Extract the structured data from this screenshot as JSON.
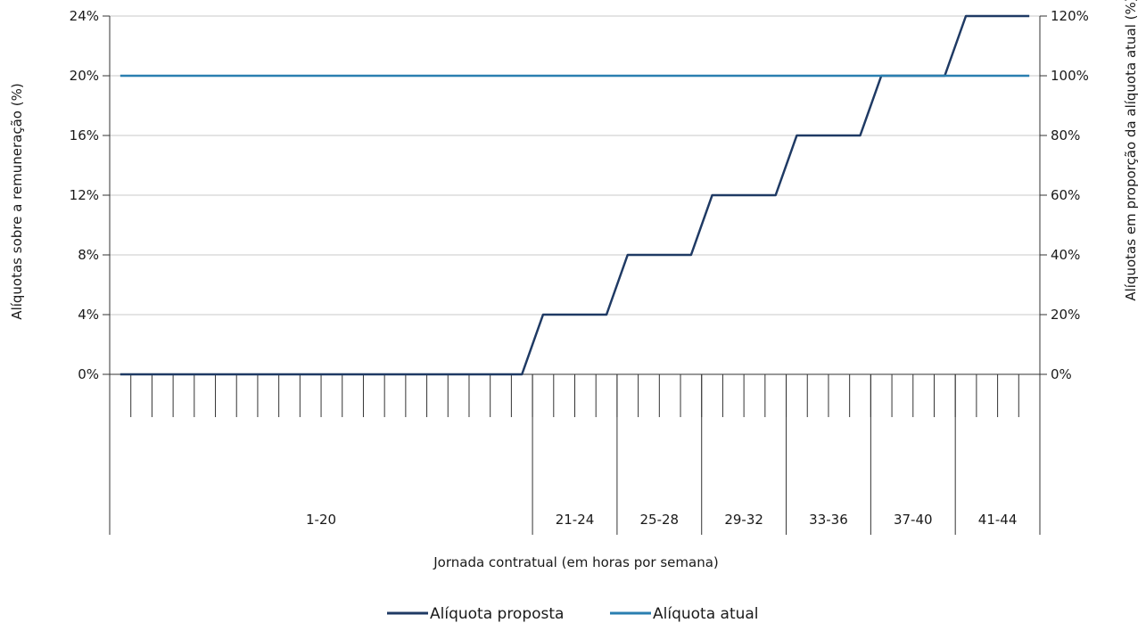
{
  "chart_data": {
    "type": "line",
    "xlabel": "Jornada contratual (em horas por semana)",
    "ylabel_left": "Alíquotas sobre a remuneração (%)",
    "ylabel_right": "Alíquotas em proporção da alíquota atual (%)",
    "ylim_left": [
      0,
      24
    ],
    "ylim_right": [
      0,
      120
    ],
    "yticks_left": [
      "0%",
      "4%",
      "8%",
      "12%",
      "16%",
      "20%",
      "24%"
    ],
    "yticks_right": [
      "0%",
      "20%",
      "40%",
      "60%",
      "80%",
      "100%",
      "120%"
    ],
    "x_hours": [
      1,
      2,
      3,
      4,
      5,
      6,
      7,
      8,
      9,
      10,
      11,
      12,
      13,
      14,
      15,
      16,
      17,
      18,
      19,
      20,
      21,
      22,
      23,
      24,
      25,
      26,
      27,
      28,
      29,
      30,
      31,
      32,
      33,
      34,
      35,
      36,
      37,
      38,
      39,
      40,
      41,
      42,
      43,
      44
    ],
    "x_groups": [
      {
        "label": "1-20",
        "from": 1,
        "to": 20
      },
      {
        "label": "21-24",
        "from": 21,
        "to": 24
      },
      {
        "label": "25-28",
        "from": 25,
        "to": 28
      },
      {
        "label": "29-32",
        "from": 29,
        "to": 32
      },
      {
        "label": "33-36",
        "from": 33,
        "to": 36
      },
      {
        "label": "37-40",
        "from": 37,
        "to": 40
      },
      {
        "label": "41-44",
        "from": 41,
        "to": 44
      }
    ],
    "series": [
      {
        "name": "Alíquota proposta",
        "color": "#1f3a64",
        "values": [
          0,
          0,
          0,
          0,
          0,
          0,
          0,
          0,
          0,
          0,
          0,
          0,
          0,
          0,
          0,
          0,
          0,
          0,
          0,
          0,
          4,
          4,
          4,
          4,
          8,
          8,
          8,
          8,
          12,
          12,
          12,
          12,
          16,
          16,
          16,
          16,
          20,
          20,
          20,
          20,
          24,
          24,
          24,
          24
        ]
      },
      {
        "name": "Alíquota atual",
        "color": "#2a7fb0",
        "values": [
          20,
          20,
          20,
          20,
          20,
          20,
          20,
          20,
          20,
          20,
          20,
          20,
          20,
          20,
          20,
          20,
          20,
          20,
          20,
          20,
          20,
          20,
          20,
          20,
          20,
          20,
          20,
          20,
          20,
          20,
          20,
          20,
          20,
          20,
          20,
          20,
          20,
          20,
          20,
          20,
          20,
          20,
          20,
          20
        ]
      }
    ],
    "grid": true,
    "legend_position": "bottom-center"
  }
}
